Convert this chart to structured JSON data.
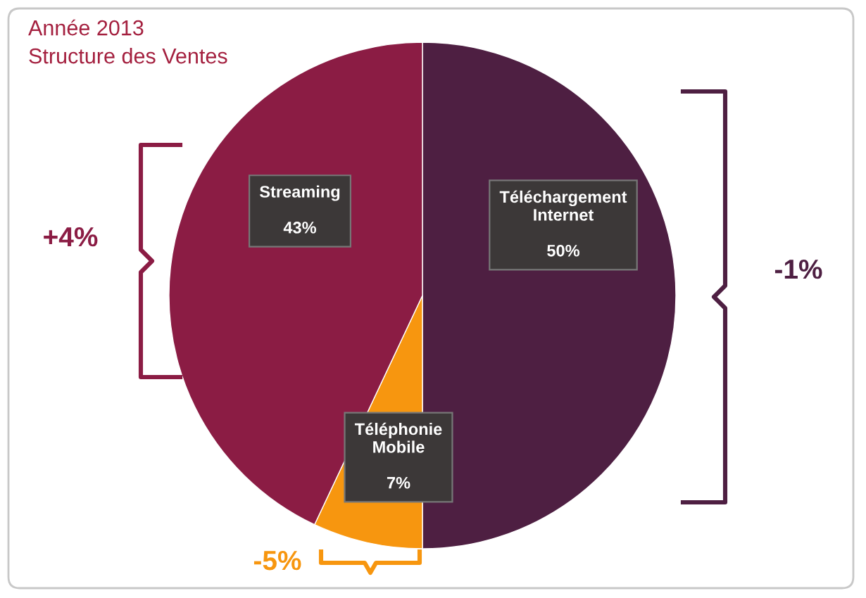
{
  "chart_data": {
    "type": "pie",
    "title": "Année 2013",
    "subtitle": "Structure des Ventes",
    "categories": [
      "Téléchargement Internet",
      "Téléphonie Mobile",
      "Streaming"
    ],
    "values": [
      50,
      7,
      43
    ],
    "value_labels": [
      "50%",
      "7%",
      "43%"
    ],
    "colors": [
      "#4e1f42",
      "#f7960f",
      "#8b1c44"
    ],
    "annotations": [
      "-1%",
      "-5%",
      "+4%"
    ],
    "legend": false
  }
}
